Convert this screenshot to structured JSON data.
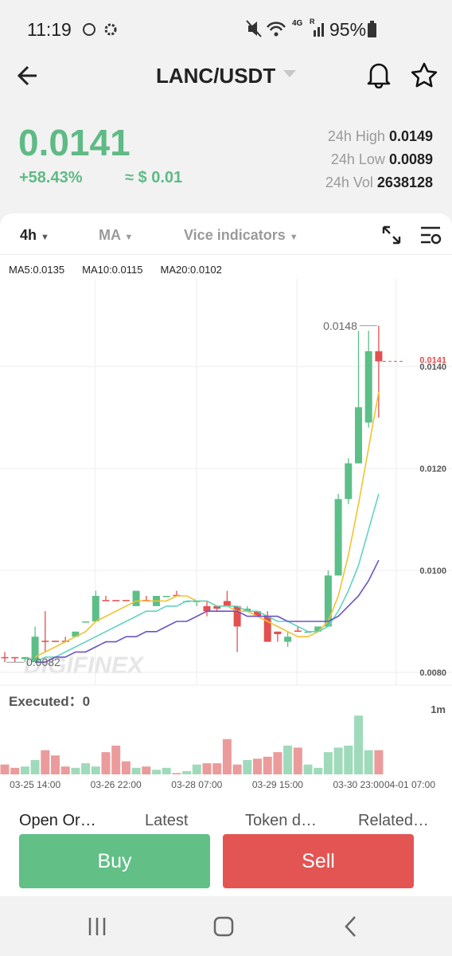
{
  "status_bar": {
    "time": "11:19",
    "network": "4G",
    "roaming": "R",
    "battery": "95%"
  },
  "header": {
    "pair": "LANC/USDT"
  },
  "ticker": {
    "price": "0.0141",
    "change": "+58.43%",
    "fiat": "≈ $ 0.01",
    "stats": [
      {
        "label": "24h High",
        "value": "0.0149"
      },
      {
        "label": "24h Low",
        "value": "0.0089"
      },
      {
        "label": "24h Vol",
        "value": "2638128"
      }
    ]
  },
  "toolbar": {
    "interval": "4h",
    "main_indicator": "MA",
    "sub_indicator": "Vice indicators"
  },
  "watermark": "DIGIFINEX",
  "executed": {
    "label": "Executed：",
    "value": 0
  },
  "chart_data": [
    {
      "type": "candlestick",
      "up_color": "#5cbf88",
      "down_color": "#e2504f",
      "ylim": [
        0.0078,
        0.0154
      ],
      "yticks": [
        {
          "value": 0.008,
          "label": "0.0080"
        },
        {
          "value": 0.01,
          "label": "0.0100"
        },
        {
          "value": 0.012,
          "label": "0.0120"
        },
        {
          "value": 0.014,
          "label": "0.0140"
        }
      ],
      "grid": true,
      "open": [
        0.0083,
        0.0083,
        0.00826,
        0.0082,
        0.00862,
        0.00862,
        0.00862,
        0.0087,
        0.009,
        0.009,
        0.00942,
        0.00942,
        0.00942,
        0.0093,
        0.00942,
        0.0093,
        0.0095,
        0.00952,
        0.0094,
        0.0094,
        0.0093,
        0.0093,
        0.0094,
        0.0093,
        0.0092,
        0.0092,
        0.0091,
        0.0088,
        0.0086,
        0.00882,
        0.0088,
        0.0088,
        0.0089,
        0.0099,
        0.0114,
        0.0121,
        0.0129,
        0.0143
      ],
      "high": [
        0.0084,
        0.0083,
        0.0083,
        0.0089,
        0.0092,
        0.00862,
        0.0087,
        0.0088,
        0.009,
        0.0096,
        0.0095,
        0.0094,
        0.0094,
        0.0096,
        0.0095,
        0.0095,
        0.0095,
        0.0096,
        0.0094,
        0.0094,
        0.0094,
        0.0093,
        0.0096,
        0.0093,
        0.0093,
        0.0092,
        0.0092,
        0.0088,
        0.0088,
        0.0089,
        0.0088,
        0.0089,
        0.01,
        0.0115,
        0.0122,
        0.0147,
        0.0147,
        0.0148
      ],
      "low": [
        0.0082,
        0.0082,
        0.0082,
        0.0082,
        0.0084,
        0.0086,
        0.0086,
        0.0087,
        0.009,
        0.009,
        0.0094,
        0.0094,
        0.0094,
        0.0093,
        0.0094,
        0.0093,
        0.0095,
        0.0095,
        0.0094,
        0.0093,
        0.0091,
        0.0092,
        0.0093,
        0.0084,
        0.0092,
        0.0091,
        0.0086,
        0.0086,
        0.0085,
        0.0088,
        0.0088,
        0.0088,
        0.0089,
        0.0099,
        0.0113,
        0.0121,
        0.0128,
        0.013
      ],
      "close": [
        0.00828,
        0.00828,
        0.0083,
        0.0087,
        0.0086,
        0.0086,
        0.0086,
        0.0088,
        0.009,
        0.0095,
        0.0094,
        0.0094,
        0.0094,
        0.0096,
        0.0094,
        0.0095,
        0.0095,
        0.0095,
        0.0094,
        0.0094,
        0.0092,
        0.00925,
        0.0093,
        0.0089,
        0.00925,
        0.0091,
        0.0086,
        0.00875,
        0.0087,
        0.0088,
        0.0088,
        0.0089,
        0.0099,
        0.0114,
        0.0121,
        0.0132,
        0.0143,
        0.0141
      ],
      "series": [
        {
          "name": "MA5:0.0135",
          "color": "#f2c230",
          "values": [
            null,
            null,
            null,
            0.0083,
            0.0084,
            0.0085,
            0.0086,
            0.0087,
            0.0088,
            0.009,
            0.0091,
            0.0092,
            0.0093,
            0.0094,
            0.0094,
            0.0094,
            0.0094,
            0.0095,
            0.0095,
            0.0094,
            0.0094,
            0.0093,
            0.0093,
            0.0092,
            0.0092,
            0.0091,
            0.009,
            0.0089,
            0.0088,
            0.0087,
            0.0087,
            0.0088,
            0.009,
            0.0095,
            0.0103,
            0.0113,
            0.0124,
            0.0135
          ]
        },
        {
          "name": "MA10:0.0115",
          "color": "#62d3c2",
          "values": [
            null,
            null,
            null,
            0.0082,
            0.0083,
            0.0083,
            0.0084,
            0.0085,
            0.0086,
            0.0087,
            0.0088,
            0.0089,
            0.009,
            0.0091,
            0.0092,
            0.0092,
            0.0093,
            0.0093,
            0.0094,
            0.0094,
            0.0094,
            0.0093,
            0.0093,
            0.0093,
            0.0092,
            0.0092,
            0.0091,
            0.009,
            0.009,
            0.0089,
            0.0088,
            0.0088,
            0.0089,
            0.0092,
            0.0096,
            0.0101,
            0.0108,
            0.0115
          ]
        },
        {
          "name": "MA20:0.0102",
          "color": "#6b52c6",
          "values": [
            null,
            null,
            null,
            0.0082,
            0.0082,
            0.0083,
            0.0083,
            0.0084,
            0.0084,
            0.0085,
            0.0086,
            0.0086,
            0.0087,
            0.0087,
            0.0088,
            0.0088,
            0.0089,
            0.009,
            0.009,
            0.0091,
            0.0092,
            0.0092,
            0.0092,
            0.0092,
            0.0091,
            0.0091,
            0.0091,
            0.0091,
            0.009,
            0.009,
            0.009,
            0.009,
            0.009,
            0.0091,
            0.0093,
            0.0095,
            0.0098,
            0.0102
          ]
        }
      ],
      "high_label": 0.0148,
      "low_label": 0.0082,
      "last_price": 0.0141
    },
    {
      "type": "bar",
      "up_color": "#9fdabb",
      "down_color": "#eb9b9b",
      "ylim": [
        0,
        1.1
      ],
      "yticks": [
        {
          "value": 1,
          "label": "1m"
        }
      ],
      "categories": [
        null,
        null,
        null,
        "03-25 14:00",
        null,
        null,
        null,
        null,
        null,
        null,
        null,
        "03-26 22:00",
        null,
        null,
        null,
        null,
        null,
        null,
        null,
        "03-28 07:00",
        null,
        null,
        null,
        null,
        null,
        null,
        null,
        "03-29 15:00",
        null,
        null,
        null,
        null,
        null,
        null,
        null,
        "03-30 23:00",
        null,
        null,
        null,
        null,
        null,
        null,
        null,
        "04-01 07:00"
      ],
      "values": [
        0.15,
        0.1,
        0.12,
        0.22,
        0.37,
        0.29,
        0.12,
        0.1,
        0.17,
        0.12,
        0.34,
        0.44,
        0.2,
        0.1,
        0.12,
        0.07,
        0.1,
        0.02,
        0.05,
        0.15,
        0.17,
        0.17,
        0.54,
        0.15,
        0.22,
        0.24,
        0.27,
        0.34,
        0.44,
        0.41,
        0.15,
        0.1,
        0.34,
        0.41,
        0.44,
        0.9,
        0.37,
        0.37,
        null,
        null,
        null,
        null,
        null,
        null
      ]
    }
  ],
  "tabs": [
    "Open Or…",
    "Latest",
    "Token d…",
    "Related…"
  ],
  "buttons": {
    "buy": "Buy",
    "sell": "Sell"
  }
}
